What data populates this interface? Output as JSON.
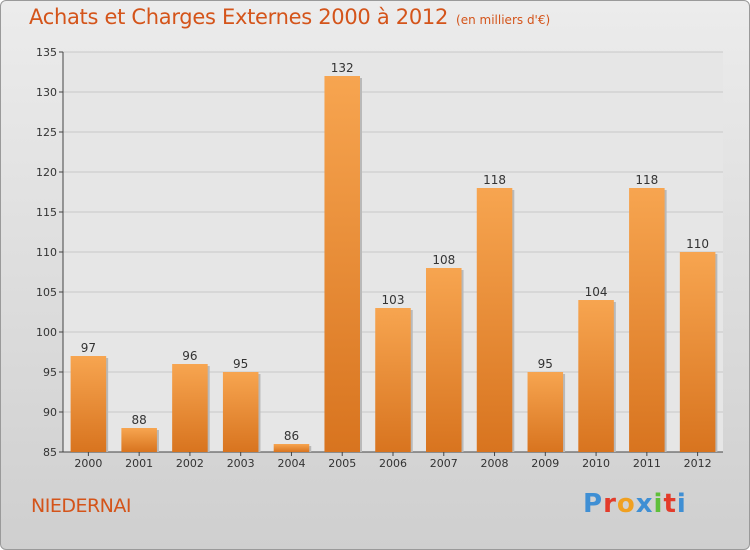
{
  "header": {
    "title": "Achats et Charges Externes 2000 à 2012",
    "subtitle": "(en milliers d'€)"
  },
  "footer": {
    "commune": "NIEDERNAI",
    "brand": "Proxiti"
  },
  "colors": {
    "title": "#d4541a",
    "bar_light": "#f7a550",
    "bar_dark": "#d8741f",
    "brand_letters": [
      "#3f8fd4",
      "#e33b2a",
      "#f0a020",
      "#3f8fd4",
      "#5fbf3a",
      "#e33b2a",
      "#3f8fd4"
    ]
  },
  "chart_data": {
    "type": "bar",
    "title": "Achats et Charges Externes 2000 à 2012",
    "subtitle": "(en milliers d'€)",
    "xlabel": "",
    "ylabel": "",
    "categories": [
      "2000",
      "2001",
      "2002",
      "2003",
      "2004",
      "2005",
      "2006",
      "2007",
      "2008",
      "2009",
      "2010",
      "2011",
      "2012"
    ],
    "values": [
      97,
      88,
      96,
      95,
      86,
      132,
      103,
      108,
      118,
      95,
      104,
      118,
      110
    ],
    "ylim": [
      85,
      135
    ],
    "yticks": [
      85,
      90,
      95,
      100,
      105,
      110,
      115,
      120,
      125,
      130,
      135
    ],
    "grid": true,
    "legend": "none"
  }
}
